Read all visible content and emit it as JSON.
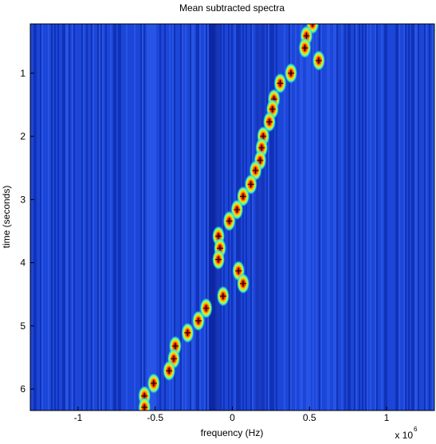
{
  "chart_data": {
    "type": "scatter",
    "title": "Mean subtracted spectra",
    "x_label": "frequency (Hz)",
    "y_label": "time (seconds)",
    "x_multiplier": "x 10",
    "x_multiplier_exponent": "6",
    "x": [
      0.52,
      0.48,
      0.47,
      0.56,
      0.38,
      0.31,
      0.27,
      0.26,
      0.24,
      0.2,
      0.19,
      0.18,
      0.15,
      0.12,
      0.07,
      0.03,
      -0.02,
      -0.09,
      -0.08,
      -0.09,
      0.04,
      0.07,
      -0.06,
      -0.17,
      -0.22,
      -0.29,
      -0.37,
      -0.38,
      -0.41,
      -0.51,
      -0.57,
      -0.57
    ],
    "values": [
      0.22,
      0.41,
      0.6,
      0.8,
      1.0,
      1.16,
      1.41,
      1.57,
      1.77,
      2.0,
      2.18,
      2.38,
      2.54,
      2.76,
      2.95,
      3.16,
      3.34,
      3.58,
      3.77,
      3.95,
      4.13,
      4.33,
      4.53,
      4.72,
      4.92,
      5.11,
      5.32,
      5.52,
      5.71,
      5.91,
      6.11,
      6.29
    ],
    "color": "#000000",
    "background_color": "#1a3fd0",
    "xlim": [
      -1.31,
      1.31
    ],
    "xticks": [
      -1,
      -0.5,
      0,
      0.5,
      1
    ],
    "ylim": [
      0.22,
      6.34
    ],
    "yticks": [
      1,
      2,
      3,
      4,
      5,
      6
    ],
    "y_reversed": true
  }
}
